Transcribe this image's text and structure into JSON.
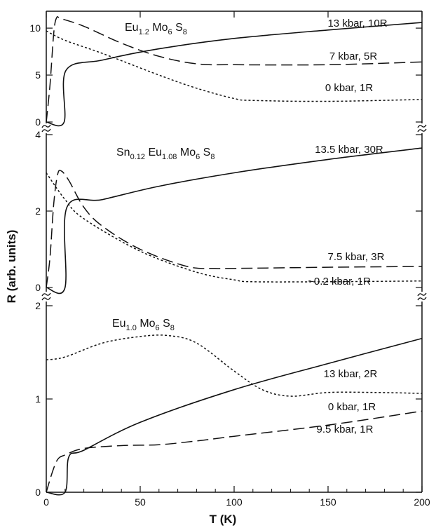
{
  "chart_data": {
    "type": "line",
    "xlabel": "T (K)",
    "ylabel": "R (arb. units)",
    "xlim": [
      0,
      200
    ],
    "x_ticks": [
      "0",
      "50",
      "100",
      "150",
      "200"
    ],
    "grid": false,
    "legend": "none",
    "panels": [
      {
        "compound": [
          "Eu",
          "1.2",
          " Mo",
          "6",
          " S",
          "8"
        ],
        "ylim": [
          0,
          11.8
        ],
        "y_ticks": [
          "0",
          "5",
          "10"
        ],
        "y_tick_values": [
          0,
          5,
          10
        ],
        "series": [
          {
            "name": "13 kbar, 10R",
            "style": "solid",
            "x": [
              0,
              9.5,
              10.5,
              30,
              60,
              100,
              150,
              200
            ],
            "y": [
              0,
              0,
              5.5,
              6.6,
              7.8,
              8.9,
              9.8,
              10.6
            ]
          },
          {
            "name": "7 kbar, 5R",
            "style": "long-dash",
            "x": [
              0,
              2,
              4,
              5.5,
              8,
              20,
              40,
              60,
              80,
              100,
              150,
              200
            ],
            "y": [
              0,
              4,
              9.5,
              11.1,
              11,
              10.2,
              8.4,
              7,
              6.2,
              6.1,
              6.1,
              6.4
            ]
          },
          {
            "name": "0 kbar, 1R",
            "style": "short-dash",
            "x": [
              0,
              10,
              30,
              60,
              80,
              100,
              110,
              150,
              200
            ],
            "y": [
              9.7,
              8.7,
              7.3,
              5,
              3.6,
              2.5,
              2.3,
              2.2,
              2.4
            ]
          }
        ]
      },
      {
        "compound": [
          "Sn",
          "0.12",
          " Eu",
          "1.08",
          " Mo",
          "6",
          " S",
          "8"
        ],
        "ylim": [
          0,
          4
        ],
        "y_ticks": [
          "0",
          "2",
          "4"
        ],
        "y_tick_values": [
          0,
          2,
          4
        ],
        "series": [
          {
            "name": "13.5 kbar, 30R",
            "style": "solid",
            "x": [
              0,
              10,
              11,
              30,
              60,
              100,
              150,
              200
            ],
            "y": [
              0,
              0,
              2.1,
              2.3,
              2.65,
              3.0,
              3.35,
              3.65
            ]
          },
          {
            "name": "7.5 kbar, 3R",
            "style": "long-dash",
            "x": [
              0,
              2,
              4,
              6,
              8,
              12,
              20,
              30,
              50,
              75,
              90,
              100,
              150,
              200
            ],
            "y": [
              0,
              0.8,
              2.2,
              2.95,
              3.05,
              2.8,
              2.1,
              1.6,
              1.0,
              0.55,
              0.5,
              0.5,
              0.53,
              0.55
            ]
          },
          {
            "name": "~0.2 kbar, 1R",
            "style": "short-dash",
            "x": [
              0,
              10,
              20,
              50,
              80,
              100,
              110,
              150,
              200
            ],
            "y": [
              3.0,
              2.3,
              1.8,
              0.95,
              0.4,
              0.2,
              0.15,
              0.15,
              0.17
            ]
          }
        ]
      },
      {
        "compound": [
          "Eu",
          "1.0",
          " Mo",
          "6",
          " S",
          "8"
        ],
        "ylim": [
          0,
          2
        ],
        "y_ticks": [
          "0",
          "1",
          "2"
        ],
        "y_tick_values": [
          0,
          1,
          2
        ],
        "series": [
          {
            "name": "13 kbar, 2R",
            "style": "solid",
            "x": [
              0,
              10,
              12,
              20,
              50,
              100,
              150,
              200
            ],
            "y": [
              0,
              0,
              0.38,
              0.45,
              0.75,
              1.1,
              1.38,
              1.65
            ]
          },
          {
            "name": "0 kbar, 1R",
            "style": "short-dash",
            "x": [
              0,
              10,
              30,
              50,
              65,
              80,
              100,
              115,
              130,
              150,
              175,
              200
            ],
            "y": [
              1.42,
              1.45,
              1.6,
              1.67,
              1.68,
              1.6,
              1.3,
              1.1,
              1.03,
              1.07,
              1.07,
              1.06
            ]
          },
          {
            "name": "9.5 kbar, 1R",
            "style": "long-dash",
            "x": [
              0,
              3,
              6,
              10,
              20,
              40,
              60,
              80,
              100,
              150,
              200
            ],
            "y": [
              0,
              0.2,
              0.35,
              0.4,
              0.47,
              0.5,
              0.51,
              0.55,
              0.6,
              0.72,
              0.87
            ]
          }
        ]
      }
    ]
  }
}
